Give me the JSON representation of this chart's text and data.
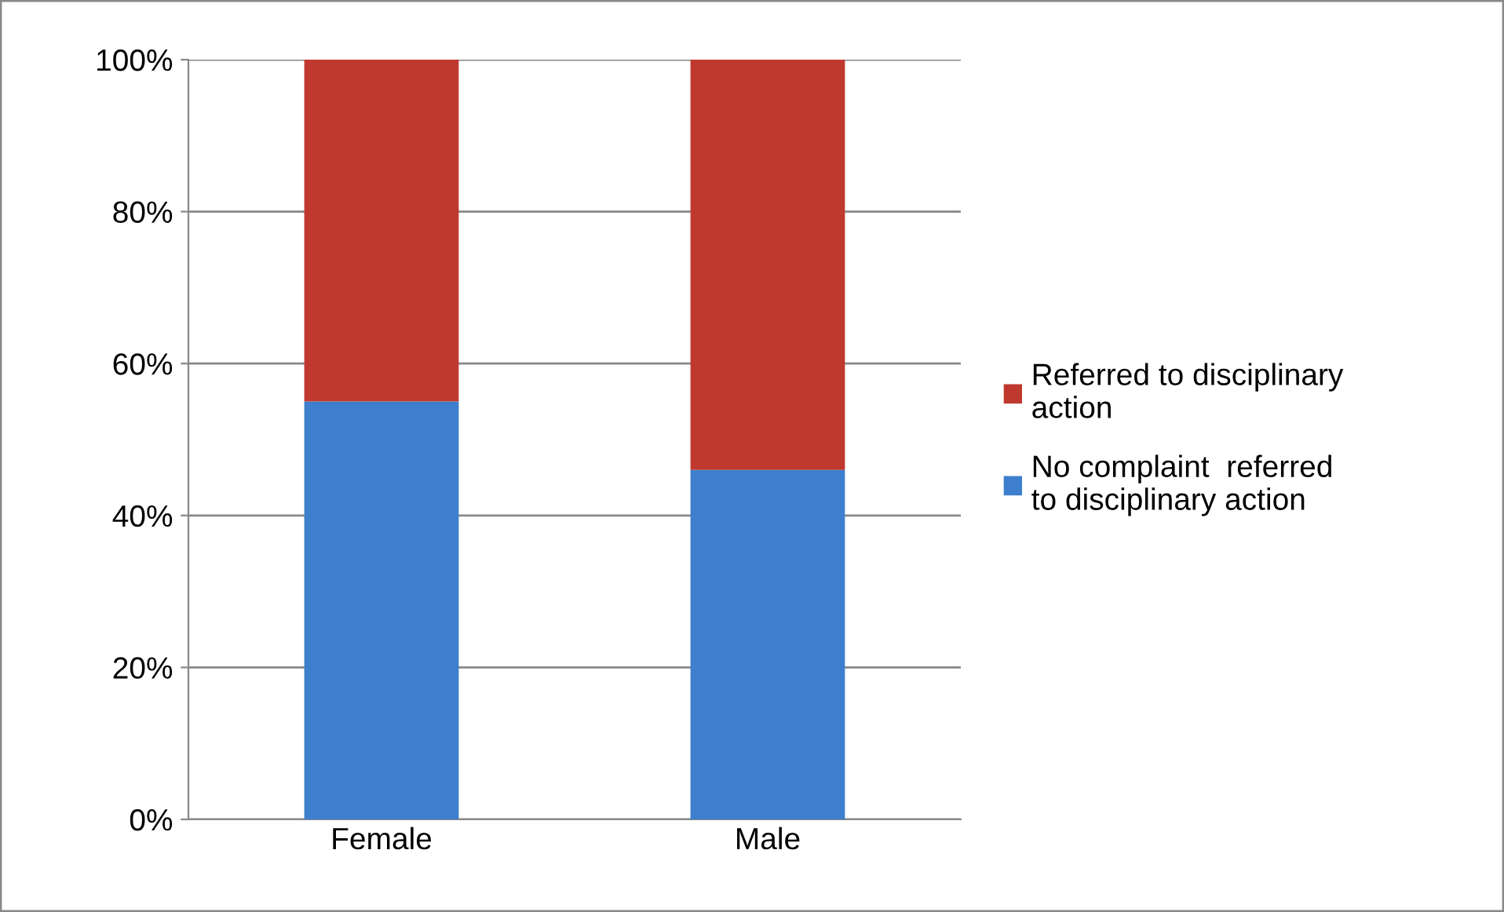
{
  "chart_data": {
    "type": "bar",
    "stacked": true,
    "categories": [
      "Female",
      "Male"
    ],
    "series": [
      {
        "name": "No complaint  referred\nto disciplinary action",
        "color": "#3d7fcc",
        "values": [
          55,
          46
        ]
      },
      {
        "name": "Referred to disciplinary\naction",
        "color": "#c0392f",
        "values": [
          45,
          54
        ]
      }
    ],
    "ylim": [
      0,
      100
    ],
    "yticks": [
      {
        "value": 0,
        "label": "0%"
      },
      {
        "value": 20,
        "label": "20%"
      },
      {
        "value": 40,
        "label": "40%"
      },
      {
        "value": 60,
        "label": "60%"
      },
      {
        "value": 80,
        "label": "80%"
      },
      {
        "value": 100,
        "label": "100%"
      }
    ],
    "grid": "y",
    "legend": "right"
  }
}
